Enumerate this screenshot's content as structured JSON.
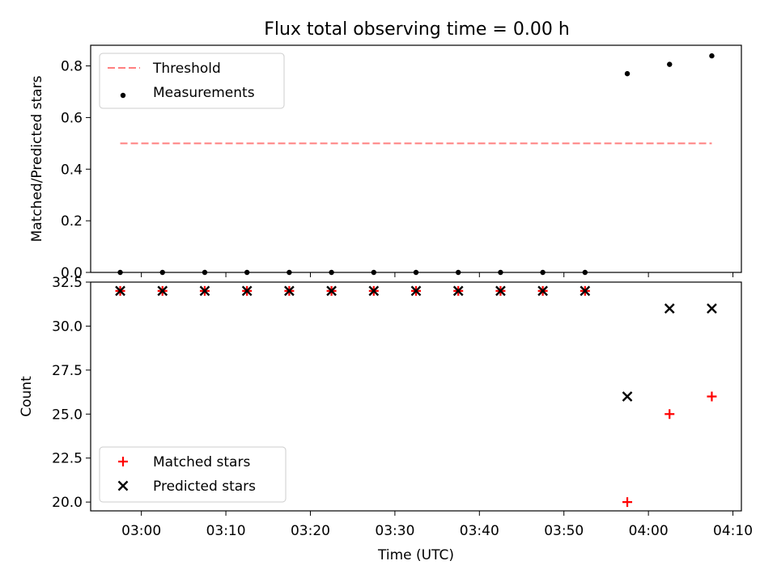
{
  "title": "Flux total observing time = 0.00 h",
  "chart_data": [
    {
      "type": "scatter",
      "ylabel": "Matched/Predicted stars",
      "ylim": [
        0.0,
        0.88
      ],
      "yticks": [
        "0.0",
        "0.2",
        "0.4",
        "0.6",
        "0.8"
      ],
      "xlim": [
        "02:54",
        "04:11"
      ],
      "legend_position": "upper-left",
      "series": [
        {
          "name": "Threshold",
          "kind": "line",
          "style": "dashed",
          "color": "#ff7f7f",
          "x": [
            "02:57:30",
            "04:07:30"
          ],
          "y": [
            0.5,
            0.5
          ]
        },
        {
          "name": "Measurements",
          "kind": "scatter",
          "marker": "dot",
          "color": "#000000",
          "x": [
            "02:57:30",
            "03:02:30",
            "03:07:30",
            "03:12:30",
            "03:17:30",
            "03:22:30",
            "03:27:30",
            "03:32:30",
            "03:37:30",
            "03:42:30",
            "03:47:30",
            "03:52:30",
            "03:57:30",
            "04:02:30",
            "04:07:30"
          ],
          "y": [
            0,
            0,
            0,
            0,
            0,
            0,
            0,
            0,
            0,
            0,
            0,
            0,
            0.77,
            0.806,
            0.839
          ]
        }
      ]
    },
    {
      "type": "scatter",
      "xlabel": "Time (UTC)",
      "ylabel": "Count",
      "ylim": [
        19.5,
        32.5
      ],
      "yticks": [
        "20.0",
        "22.5",
        "25.0",
        "27.5",
        "30.0",
        "32.5"
      ],
      "xlim": [
        "02:54",
        "04:11"
      ],
      "xticks": [
        "03:00",
        "03:10",
        "03:20",
        "03:30",
        "03:40",
        "03:50",
        "04:00",
        "04:10"
      ],
      "legend_position": "lower-left",
      "series": [
        {
          "name": "Matched stars",
          "kind": "scatter",
          "marker": "plus",
          "color": "#ff0000",
          "x": [
            "02:57:30",
            "03:02:30",
            "03:07:30",
            "03:12:30",
            "03:17:30",
            "03:22:30",
            "03:27:30",
            "03:32:30",
            "03:37:30",
            "03:42:30",
            "03:47:30",
            "03:52:30",
            "03:57:30",
            "04:02:30",
            "04:07:30"
          ],
          "y": [
            32,
            32,
            32,
            32,
            32,
            32,
            32,
            32,
            32,
            32,
            32,
            32,
            20,
            25,
            26
          ]
        },
        {
          "name": "Predicted stars",
          "kind": "scatter",
          "marker": "x",
          "color": "#000000",
          "x": [
            "02:57:30",
            "03:02:30",
            "03:07:30",
            "03:12:30",
            "03:17:30",
            "03:22:30",
            "03:27:30",
            "03:32:30",
            "03:37:30",
            "03:42:30",
            "03:47:30",
            "03:52:30",
            "03:57:30",
            "04:02:30",
            "04:07:30"
          ],
          "y": [
            32,
            32,
            32,
            32,
            32,
            32,
            32,
            32,
            32,
            32,
            32,
            32,
            26,
            31,
            31
          ]
        }
      ]
    }
  ]
}
